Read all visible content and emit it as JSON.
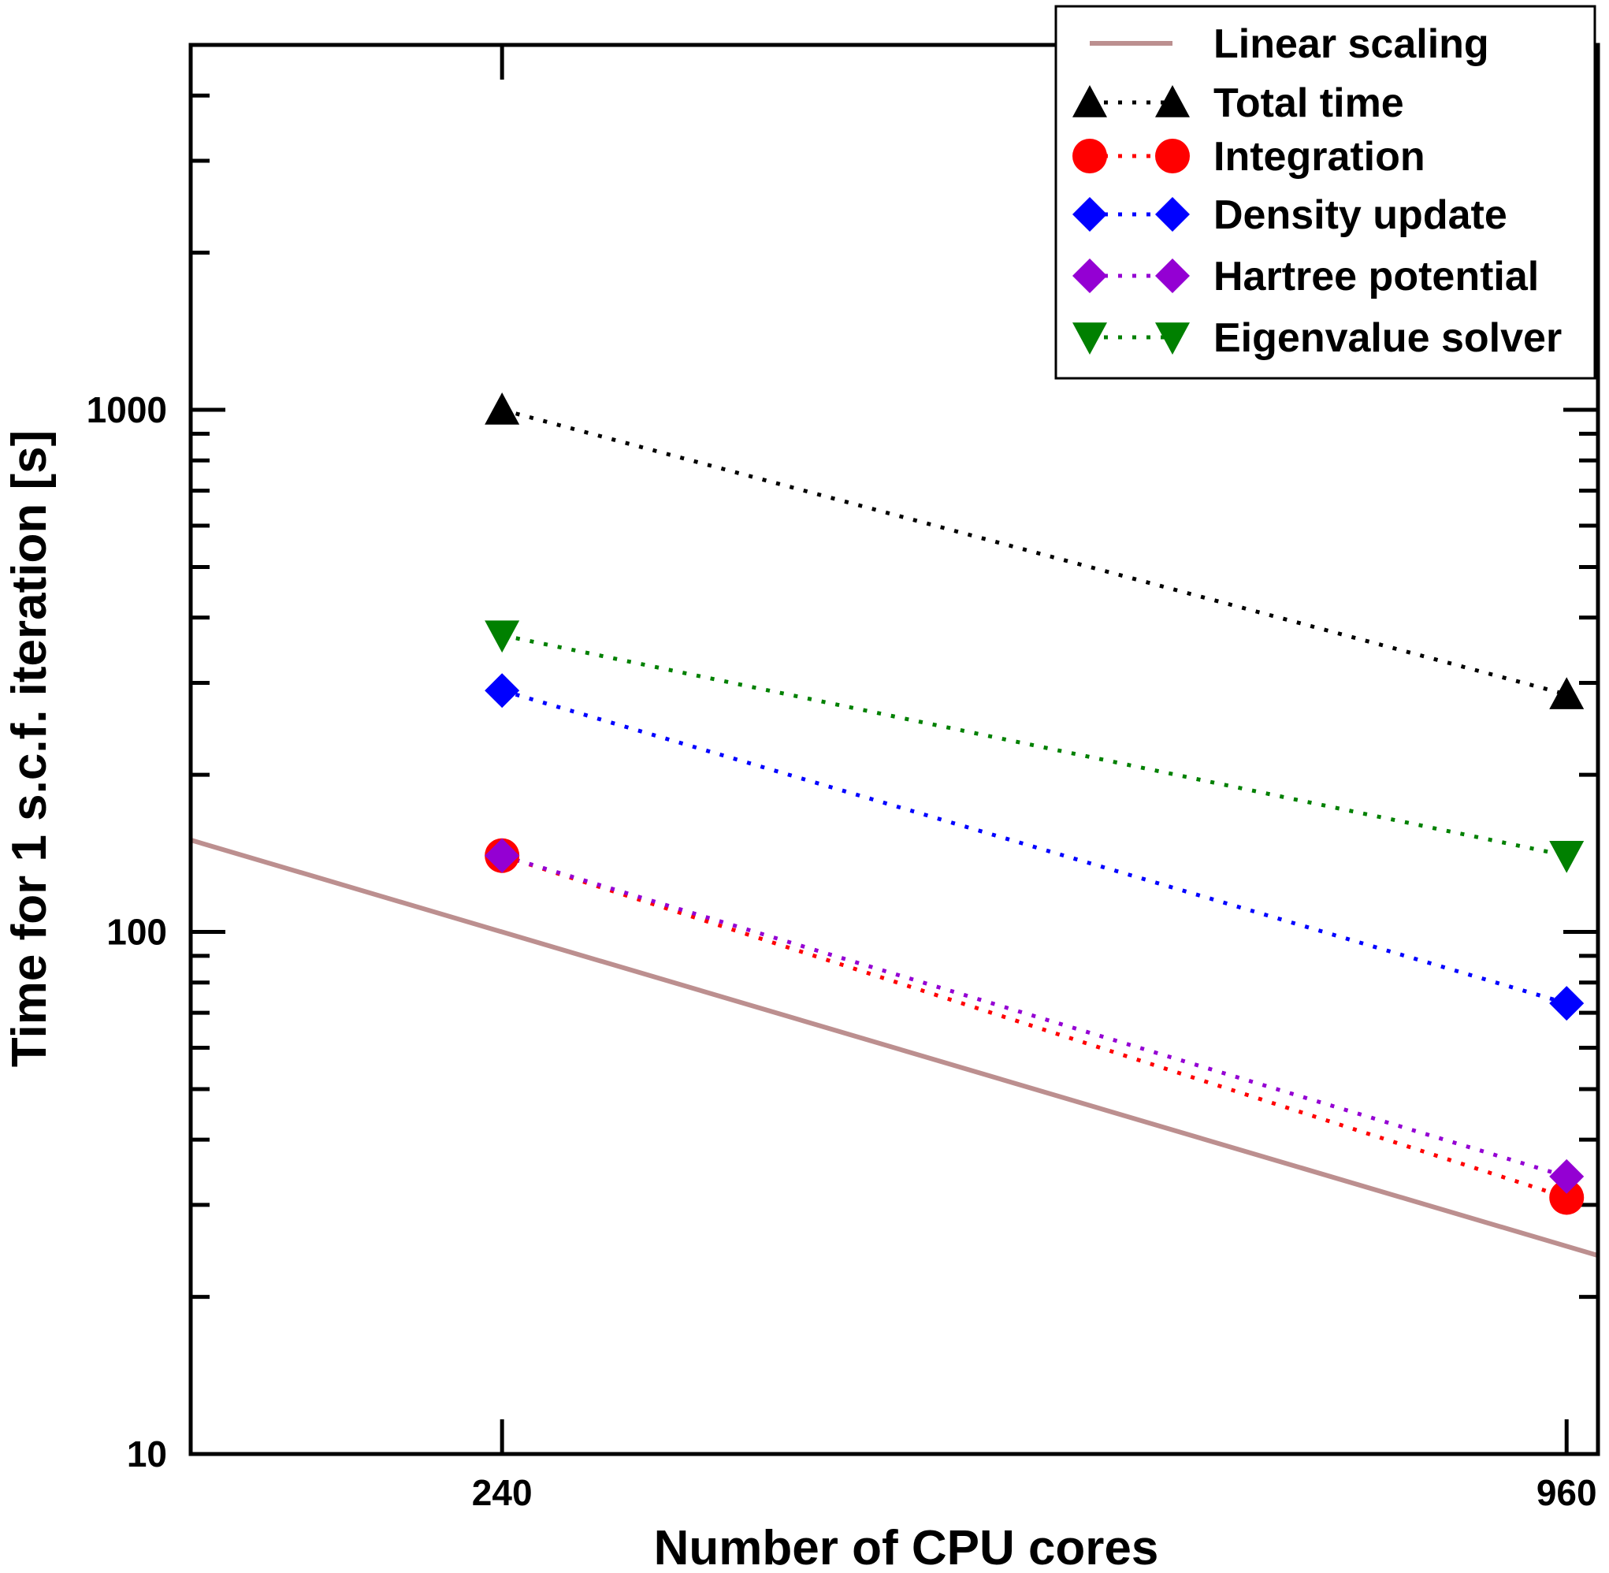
{
  "chart_data": {
    "type": "line",
    "title": "",
    "xlabel": "Number of CPU cores",
    "ylabel": "Time for 1 s.c.f. iteration [s]",
    "xscale": "log",
    "yscale": "log",
    "xlim": [
      160,
      1000
    ],
    "ylim": [
      10,
      5000
    ],
    "x_ticks": [
      240,
      960
    ],
    "x_tick_labels": [
      "240",
      "960"
    ],
    "y_ticks": [
      10,
      100,
      1000
    ],
    "y_tick_labels": [
      "10",
      "100",
      "1000"
    ],
    "legend_position": "top-right",
    "grid": false,
    "series": [
      {
        "name": "Linear scaling",
        "x": [
          160,
          1000
        ],
        "y": [
          150,
          24
        ],
        "color": "#bc8f8f",
        "style": "solid",
        "marker": "none"
      },
      {
        "name": "Total time",
        "x": [
          240,
          960
        ],
        "y": [
          1000,
          285
        ],
        "color": "#000000",
        "style": "dotted",
        "marker": "triangle-up"
      },
      {
        "name": "Integration",
        "x": [
          240,
          960
        ],
        "y": [
          140,
          31
        ],
        "color": "#ff0000",
        "style": "dotted",
        "marker": "circle"
      },
      {
        "name": "Density update",
        "x": [
          240,
          960
        ],
        "y": [
          290,
          73
        ],
        "color": "#0000ff",
        "style": "dotted",
        "marker": "diamond"
      },
      {
        "name": "Hartree potential",
        "x": [
          240,
          960
        ],
        "y": [
          140,
          34
        ],
        "color": "#9400d3",
        "style": "dotted",
        "marker": "diamond"
      },
      {
        "name": "Eigenvalue solver",
        "x": [
          240,
          960
        ],
        "y": [
          370,
          140
        ],
        "color": "#008000",
        "style": "dotted",
        "marker": "triangle-down"
      }
    ]
  }
}
